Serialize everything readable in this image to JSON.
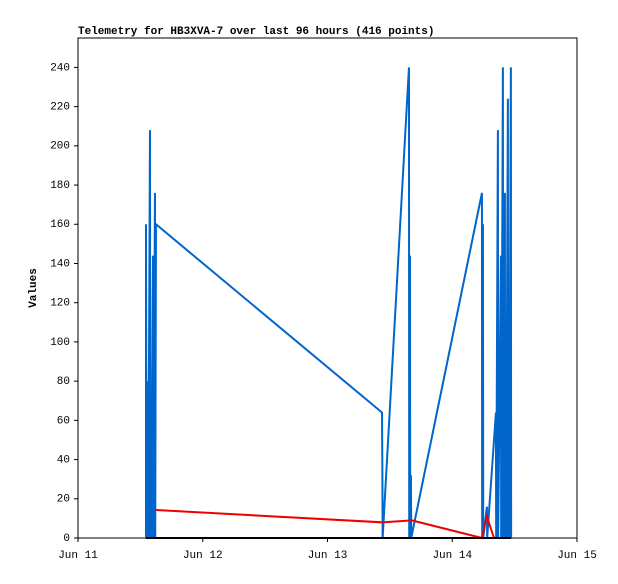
{
  "chart_data": {
    "type": "line",
    "title": "Telemetry for HB3XVA-7 over last 96 hours (416 points)",
    "y_label": "Values",
    "xlim": [
      11,
      15
    ],
    "xticks": [
      {
        "value": 11,
        "label": "Jun 11"
      },
      {
        "value": 12,
        "label": "Jun 12"
      },
      {
        "value": 13,
        "label": "Jun 13"
      },
      {
        "value": 14,
        "label": "Jun 14"
      },
      {
        "value": 15,
        "label": "Jun 15"
      }
    ],
    "ylim": [
      0,
      255
    ],
    "yticks": [
      0,
      20,
      40,
      60,
      80,
      100,
      120,
      140,
      160,
      180,
      200,
      220,
      240
    ],
    "series": [
      {
        "color": "#0066cc",
        "x": [
          11.545,
          11.545,
          11.55,
          11.561,
          11.563,
          11.577,
          11.579,
          11.585,
          11.587,
          11.601,
          11.603,
          11.617,
          11.619,
          11.625,
          13.437,
          13.44,
          13.442,
          13.653,
          13.655,
          13.661,
          13.663,
          13.669,
          13.671,
          14.238,
          14.24,
          14.246,
          14.248,
          14.278,
          14.28,
          14.35,
          14.352,
          14.366,
          14.368,
          14.39,
          14.392,
          14.406,
          14.408,
          14.422,
          14.424,
          14.43,
          14.432,
          14.446,
          14.448,
          14.454,
          14.456,
          14.47,
          14.472
        ],
        "values": [
          0,
          160,
          0,
          80,
          0,
          208,
          0,
          48,
          0,
          144,
          0,
          176,
          0,
          160,
          64,
          32,
          0,
          240,
          0,
          144,
          0,
          32,
          0,
          176,
          0,
          160,
          0,
          16,
          0,
          64,
          0,
          208,
          0,
          144,
          0,
          240,
          0,
          176,
          0,
          64,
          0,
          224,
          0,
          72,
          0,
          240,
          0
        ]
      },
      {
        "color": "#ee0000",
        "x": [
          11.625,
          13.437,
          13.677,
          14.238,
          14.278,
          14.334
        ],
        "values": [
          14.3,
          8,
          9,
          0,
          11,
          0
        ]
      },
      {
        "color": "#000000",
        "x": [
          11.545,
          14.472
        ],
        "values": [
          0,
          0
        ]
      }
    ]
  }
}
